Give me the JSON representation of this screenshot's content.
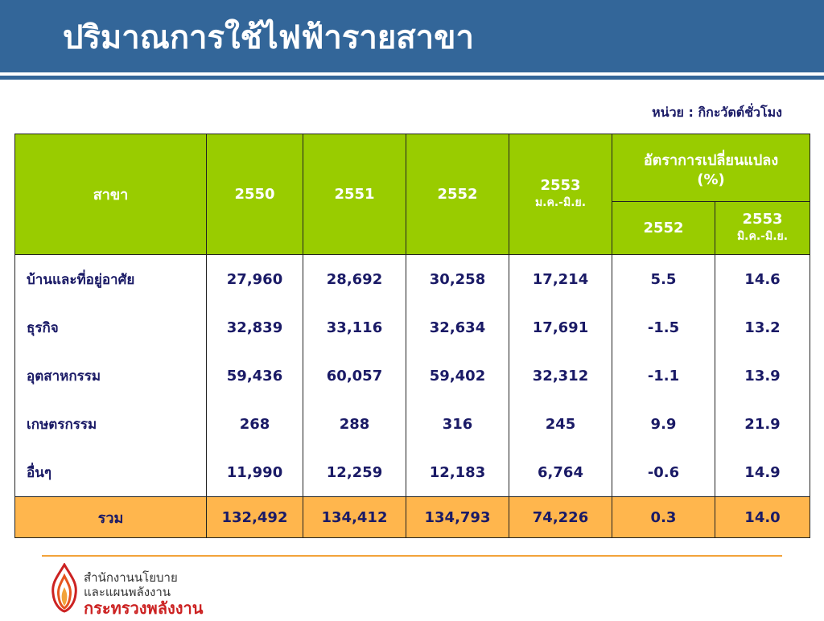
{
  "title": "ปริมาณการใช้ไฟฟ้ารายสาขา",
  "unit_note": "หน่วย : กิกะวัตต์ชั่วโมง",
  "table": {
    "header": {
      "branch": "สาขา",
      "y2550": "2550",
      "y2551": "2551",
      "y2552": "2552",
      "y2553": "2553",
      "y2553_sub": "ม.ค.-มิ.ย.",
      "change_group": "อัตราการเปลี่ยนแปลง (%)",
      "change_2552": "2552",
      "change_2553": "2553",
      "change_2553_sub": "มิ.ค.-มิ.ย."
    },
    "rows": [
      {
        "label": "บ้านและที่อยู่อาศัย",
        "v2550": "27,960",
        "v2551": "28,692",
        "v2552": "30,258",
        "v2553": "17,214",
        "c2552": "5.5",
        "c2553": "14.6"
      },
      {
        "label": "ธุรกิจ",
        "v2550": "32,839",
        "v2551": "33,116",
        "v2552": "32,634",
        "v2553": "17,691",
        "c2552": "-1.5",
        "c2553": "13.2"
      },
      {
        "label": "อุตสาหกรรม",
        "v2550": "59,436",
        "v2551": "60,057",
        "v2552": "59,402",
        "v2553": "32,312",
        "c2552": "-1.1",
        "c2553": "13.9"
      },
      {
        "label": "เกษตรกรรม",
        "v2550": "268",
        "v2551": "288",
        "v2552": "316",
        "v2553": "245",
        "c2552": "9.9",
        "c2553": "21.9"
      },
      {
        "label": "อื่นๆ",
        "v2550": "11,990",
        "v2551": "12,259",
        "v2552": "12,183",
        "v2553": "6,764",
        "c2552": "-0.6",
        "c2553": "14.9"
      }
    ],
    "total": {
      "label": "รวม",
      "v2550": "132,492",
      "v2551": "134,412",
      "v2552": "134,793",
      "v2553": "74,226",
      "c2552": "0.3",
      "c2553": "14.0"
    }
  },
  "footer": {
    "org_line1": "สำนักงานนโยบาย",
    "org_line2": "และแผนพลังงาน",
    "ministry": "กระทรวงพลังงาน"
  },
  "colors": {
    "title_bar": "#336699",
    "header_green": "#99cc00",
    "total_orange": "#ffb64d",
    "text_navy": "#1a1a66",
    "footer_rule": "#f2a33a"
  }
}
